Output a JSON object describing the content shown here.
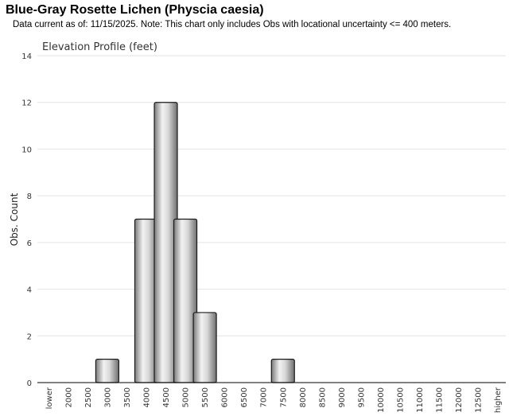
{
  "header": {
    "title": "Blue-Gray Rosette Lichen   (Physcia caesia)",
    "note": "Data current as of: 11/15/2025.    Note: This chart only includes Obs with locational uncertainty <= 400 meters."
  },
  "chart_data": {
    "type": "bar",
    "title": "Elevation Profile (feet)",
    "xlabel": "",
    "ylabel": "Obs. Count",
    "ylim": [
      0,
      14
    ],
    "yticks": [
      "0",
      "2",
      "4",
      "6",
      "8",
      "10",
      "12",
      "14"
    ],
    "grid": true,
    "categories": [
      "lower",
      "2000",
      "2500",
      "3000",
      "3500",
      "4000",
      "4500",
      "5000",
      "5500",
      "6000",
      "6500",
      "7000",
      "7500",
      "8000",
      "8500",
      "9000",
      "9500",
      "10000",
      "10500",
      "11000",
      "11500",
      "12000",
      "12500",
      "higher"
    ],
    "values": [
      0,
      0,
      0,
      1,
      0,
      7,
      12,
      7,
      3,
      0,
      0,
      0,
      1,
      0,
      0,
      0,
      0,
      0,
      0,
      0,
      0,
      0,
      0,
      0
    ],
    "bar_color": "#b5b5b5"
  }
}
